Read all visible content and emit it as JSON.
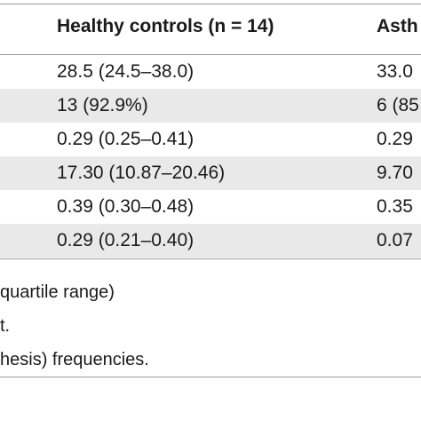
{
  "header": {
    "col_healthy": "Healthy controls (n = 14)",
    "col_asthma": "Asth"
  },
  "rows": [
    {
      "healthy": "28.5 (24.5–38.0)",
      "asthma": "33.0"
    },
    {
      "healthy": "13 (92.9%)",
      "asthma": "6 (85"
    },
    {
      "healthy": "0.29 (0.25–0.41)",
      "asthma": "0.29"
    },
    {
      "healthy": "17.30 (10.87–20.46)",
      "asthma": "9.70"
    },
    {
      "healthy": "0.39 (0.30–0.48)",
      "asthma": "0.35"
    },
    {
      "healthy": "0.29 (0.21–0.40)",
      "asthma": "0.07"
    }
  ],
  "notes": [
    "quartile range)",
    "t.",
    "hesis) frequencies."
  ],
  "colors": {
    "row_shade": "#e9e9e9",
    "rule": "#9a9a9a",
    "text": "#1a1a1a"
  }
}
